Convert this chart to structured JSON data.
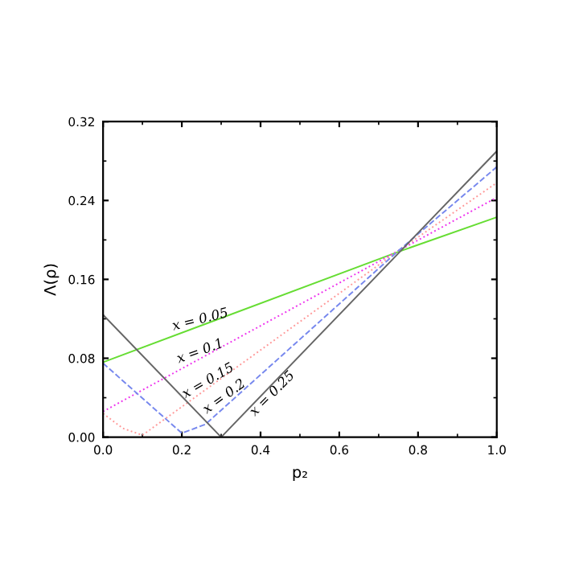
{
  "chart_data": {
    "type": "line",
    "xlabel": "p₂",
    "ylabel": "Λ(ρ)",
    "xlim": [
      0,
      1
    ],
    "ylim": [
      0,
      0.32
    ],
    "xticks": [
      {
        "value": 0,
        "label": "0.0"
      },
      {
        "value": 0.2,
        "label": "0.2"
      },
      {
        "value": 0.4,
        "label": "0.4"
      },
      {
        "value": 0.6,
        "label": "0.6"
      },
      {
        "value": 0.8,
        "label": "0.8"
      },
      {
        "value": 1,
        "label": "1.0"
      }
    ],
    "yticks": [
      {
        "value": 0,
        "label": "0.00"
      },
      {
        "value": 0.08,
        "label": "0.08"
      },
      {
        "value": 0.16,
        "label": "0.16"
      },
      {
        "value": 0.24,
        "label": "0.24"
      },
      {
        "value": 0.32,
        "label": "0.32"
      }
    ],
    "grid": false,
    "legend": false,
    "series": [
      {
        "color": "#66dd33",
        "line_style": "solid",
        "x": [
          0,
          0.75,
          1
        ],
        "values": [
          0.076,
          0.188,
          0.223
        ]
      },
      {
        "color": "#ee33ee",
        "line_style": "dotted",
        "x": [
          0,
          0.75,
          1
        ],
        "values": [
          0.026,
          0.189,
          0.243
        ]
      },
      {
        "color": "#ff9999",
        "line_style": "dotted",
        "x": [
          0,
          0.05,
          0.1,
          0.75,
          1
        ],
        "values": [
          0.024,
          0.009,
          0.002,
          0.189,
          0.258
        ]
      },
      {
        "color": "#7788ee",
        "line_style": "dashed",
        "x": [
          0,
          0.2,
          0.26,
          0.75,
          1
        ],
        "values": [
          0.075,
          0.004,
          0.013,
          0.189,
          0.274
        ]
      },
      {
        "color": "#666666",
        "line_style": "solid",
        "x": [
          0,
          0.3,
          1
        ],
        "values": [
          0.124,
          0,
          0.29
        ]
      }
    ],
    "annotations": [
      {
        "text": "x = 0.05",
        "x": 0.247,
        "y": 0.119
      },
      {
        "text": "x = 0.1",
        "x": 0.247,
        "y": 0.087
      },
      {
        "text": "x = 0.15",
        "x": 0.267,
        "y": 0.057
      },
      {
        "text": "x = 0.2",
        "x": 0.308,
        "y": 0.041
      },
      {
        "text": "x = 0.25",
        "x": 0.43,
        "y": 0.044
      }
    ]
  }
}
